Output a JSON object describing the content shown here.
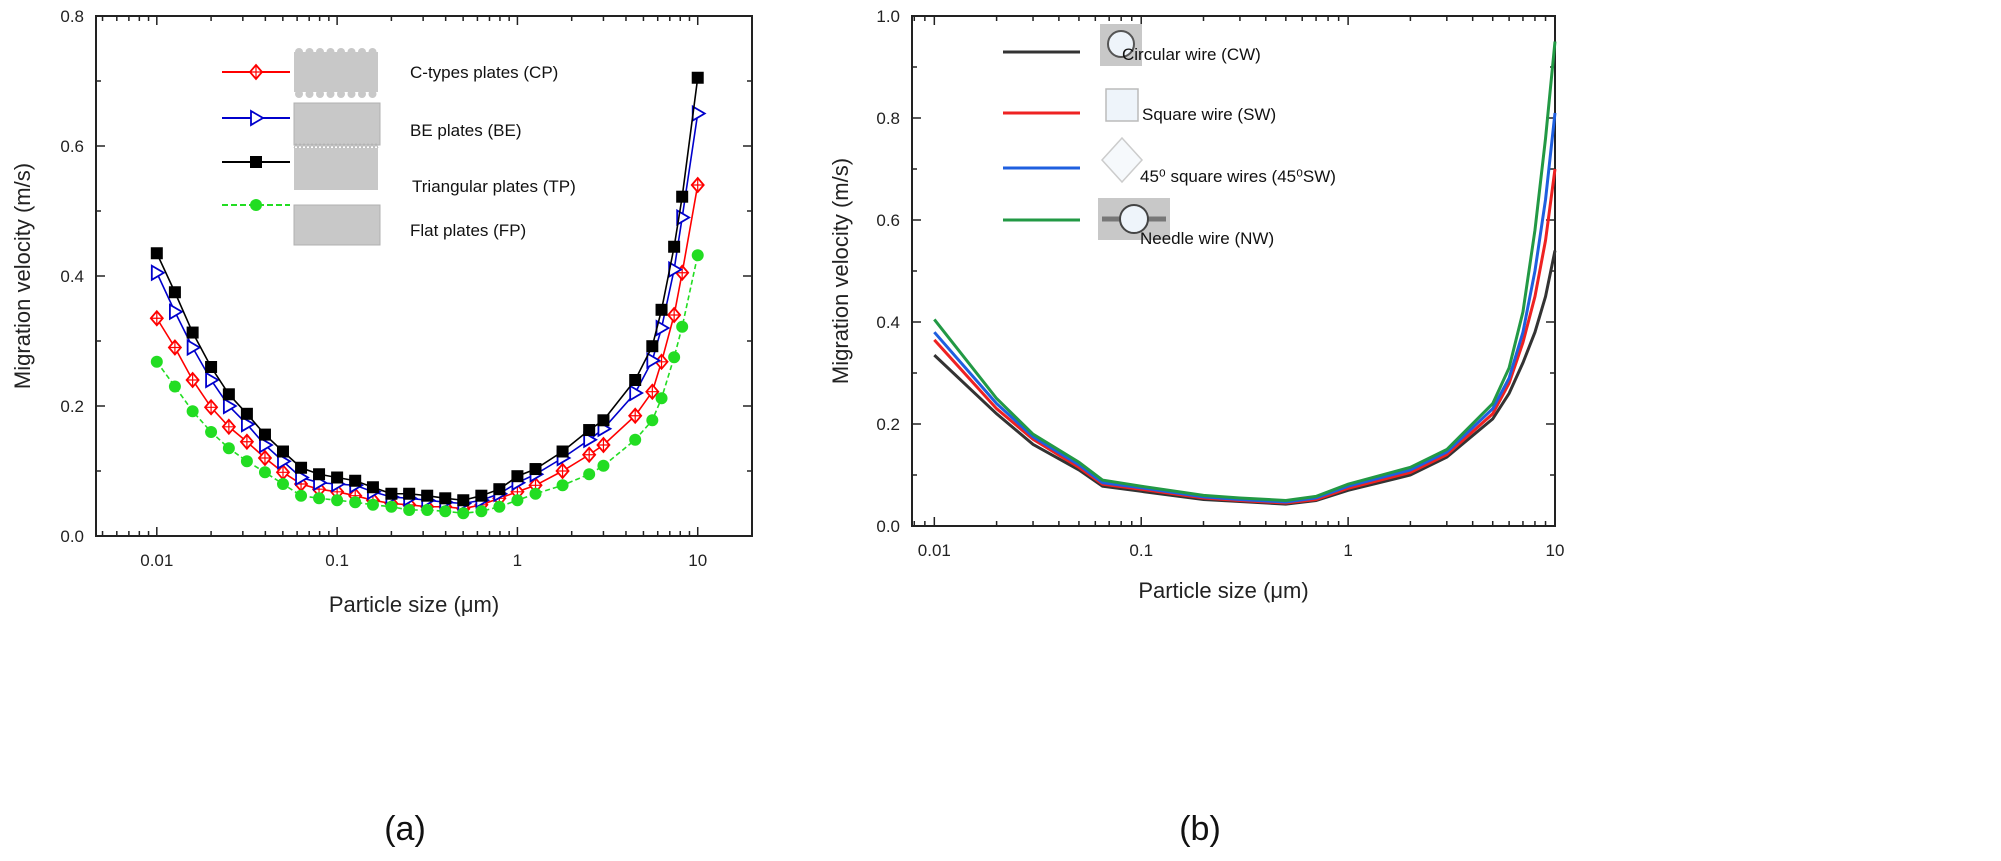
{
  "chart_data": [
    {
      "type": "line",
      "panel_label": "(a)",
      "xlabel": "Particle size (μm)",
      "ylabel": "Migration velocity (m/s)",
      "xscale": "log",
      "xlim": [
        0.0046,
        20
      ],
      "ylim": [
        0,
        0.8
      ],
      "xticks": [
        0.01,
        0.1,
        1,
        10
      ],
      "xtick_labels": [
        "0.01",
        "0.1",
        "1",
        "10"
      ],
      "yticks": [
        0.0,
        0.2,
        0.4,
        0.6,
        0.8
      ],
      "ytick_labels": [
        "0.0",
        "0.2",
        "0.4",
        "0.6",
        "0.8"
      ],
      "grid": false,
      "legend_placement": "top-center",
      "x": [
        0.01,
        0.0126,
        0.0158,
        0.02,
        0.0251,
        0.0316,
        0.0398,
        0.0501,
        0.0631,
        0.0794,
        0.1,
        0.126,
        0.158,
        0.2,
        0.251,
        0.316,
        0.398,
        0.501,
        0.631,
        0.794,
        1,
        1.26,
        1.78,
        2.5,
        3.0,
        4.5,
        5.6,
        6.3,
        7.4,
        8.2,
        10
      ],
      "series": [
        {
          "name": "C-types plates (CP)",
          "color": "#ff0000",
          "marker": "crossed-diamond",
          "icon": "corrugated-plate",
          "values": [
            0.335,
            0.29,
            0.24,
            0.198,
            0.168,
            0.145,
            0.12,
            0.098,
            0.08,
            0.072,
            0.068,
            0.062,
            0.055,
            0.05,
            0.048,
            0.045,
            0.045,
            0.042,
            0.048,
            0.058,
            0.068,
            0.078,
            0.1,
            0.125,
            0.14,
            0.185,
            0.222,
            0.268,
            0.34,
            0.405,
            0.54
          ]
        },
        {
          "name": "BE plates (BE)",
          "color": "#0000cc",
          "marker": "open-right-triangle",
          "icon": "baffled-plate",
          "values": [
            0.405,
            0.345,
            0.29,
            0.24,
            0.2,
            0.172,
            0.14,
            0.115,
            0.09,
            0.082,
            0.08,
            0.078,
            0.068,
            0.06,
            0.058,
            0.055,
            0.052,
            0.05,
            0.055,
            0.065,
            0.082,
            0.095,
            0.12,
            0.148,
            0.165,
            0.22,
            0.27,
            0.32,
            0.41,
            0.49,
            0.65
          ]
        },
        {
          "name": "Triangular plates (TP)",
          "color": "#000000",
          "marker": "filled-square",
          "icon": "serrated-plate",
          "values": [
            0.435,
            0.375,
            0.313,
            0.26,
            0.218,
            0.188,
            0.156,
            0.13,
            0.105,
            0.095,
            0.09,
            0.085,
            0.075,
            0.065,
            0.065,
            0.062,
            0.058,
            0.055,
            0.062,
            0.072,
            0.092,
            0.103,
            0.13,
            0.163,
            0.178,
            0.24,
            0.292,
            0.348,
            0.445,
            0.522,
            0.705
          ]
        },
        {
          "name": "Flat plates (FP)",
          "color": "#22dd22",
          "marker": "filled-circle",
          "icon": "flat-plate",
          "values": [
            0.268,
            0.23,
            0.192,
            0.16,
            0.135,
            0.115,
            0.098,
            0.08,
            0.062,
            0.058,
            0.055,
            0.052,
            0.048,
            0.045,
            0.04,
            0.04,
            0.038,
            0.035,
            0.038,
            0.045,
            0.055,
            0.065,
            0.078,
            0.095,
            0.108,
            0.148,
            0.178,
            0.212,
            0.275,
            0.322,
            0.432
          ]
        }
      ]
    },
    {
      "type": "line",
      "panel_label": "(b)",
      "xlabel": "Particle size (μm)",
      "ylabel": "Migration velocity (m/s)",
      "xscale": "log",
      "xlim": [
        0.0078,
        10
      ],
      "ylim": [
        0,
        1.0
      ],
      "xticks": [
        0.01,
        0.1,
        1,
        10
      ],
      "xtick_labels": [
        "0.01",
        "0.1",
        "1",
        "10"
      ],
      "yticks": [
        0.0,
        0.2,
        0.4,
        0.6,
        0.8,
        1.0
      ],
      "ytick_labels": [
        "0.0",
        "0.2",
        "0.4",
        "0.6",
        "0.8",
        "1.0"
      ],
      "grid": false,
      "legend_placement": "top-center",
      "x": [
        0.01,
        0.02,
        0.03,
        0.05,
        0.065,
        0.1,
        0.2,
        0.3,
        0.5,
        0.7,
        1,
        2,
        3,
        5,
        6,
        7,
        8,
        9,
        10
      ],
      "series": [
        {
          "name": "Circular wire (CW)",
          "color": "#333333",
          "icon": "circular-wire",
          "values": [
            0.335,
            0.22,
            0.16,
            0.11,
            0.078,
            0.068,
            0.052,
            0.048,
            0.043,
            0.05,
            0.07,
            0.1,
            0.135,
            0.21,
            0.26,
            0.32,
            0.38,
            0.45,
            0.54
          ]
        },
        {
          "name": "Square wire (SW)",
          "color": "#ee2222",
          "icon": "square-wire",
          "values": [
            0.365,
            0.23,
            0.17,
            0.115,
            0.082,
            0.072,
            0.055,
            0.05,
            0.045,
            0.052,
            0.074,
            0.105,
            0.14,
            0.22,
            0.28,
            0.36,
            0.45,
            0.56,
            0.7
          ]
        },
        {
          "name": "45⁰ square  wires (45⁰SW)",
          "color": "#1f5fdf",
          "icon": "diamond-wire",
          "values": [
            0.38,
            0.24,
            0.175,
            0.12,
            0.085,
            0.075,
            0.057,
            0.052,
            0.047,
            0.055,
            0.078,
            0.11,
            0.145,
            0.23,
            0.29,
            0.38,
            0.5,
            0.64,
            0.81
          ]
        },
        {
          "name": "Needle wire (NW)",
          "color": "#229944",
          "icon": "needle-wire",
          "values": [
            0.405,
            0.25,
            0.18,
            0.125,
            0.09,
            0.078,
            0.06,
            0.055,
            0.05,
            0.058,
            0.082,
            0.115,
            0.15,
            0.24,
            0.31,
            0.42,
            0.58,
            0.76,
            0.95
          ]
        }
      ]
    }
  ]
}
